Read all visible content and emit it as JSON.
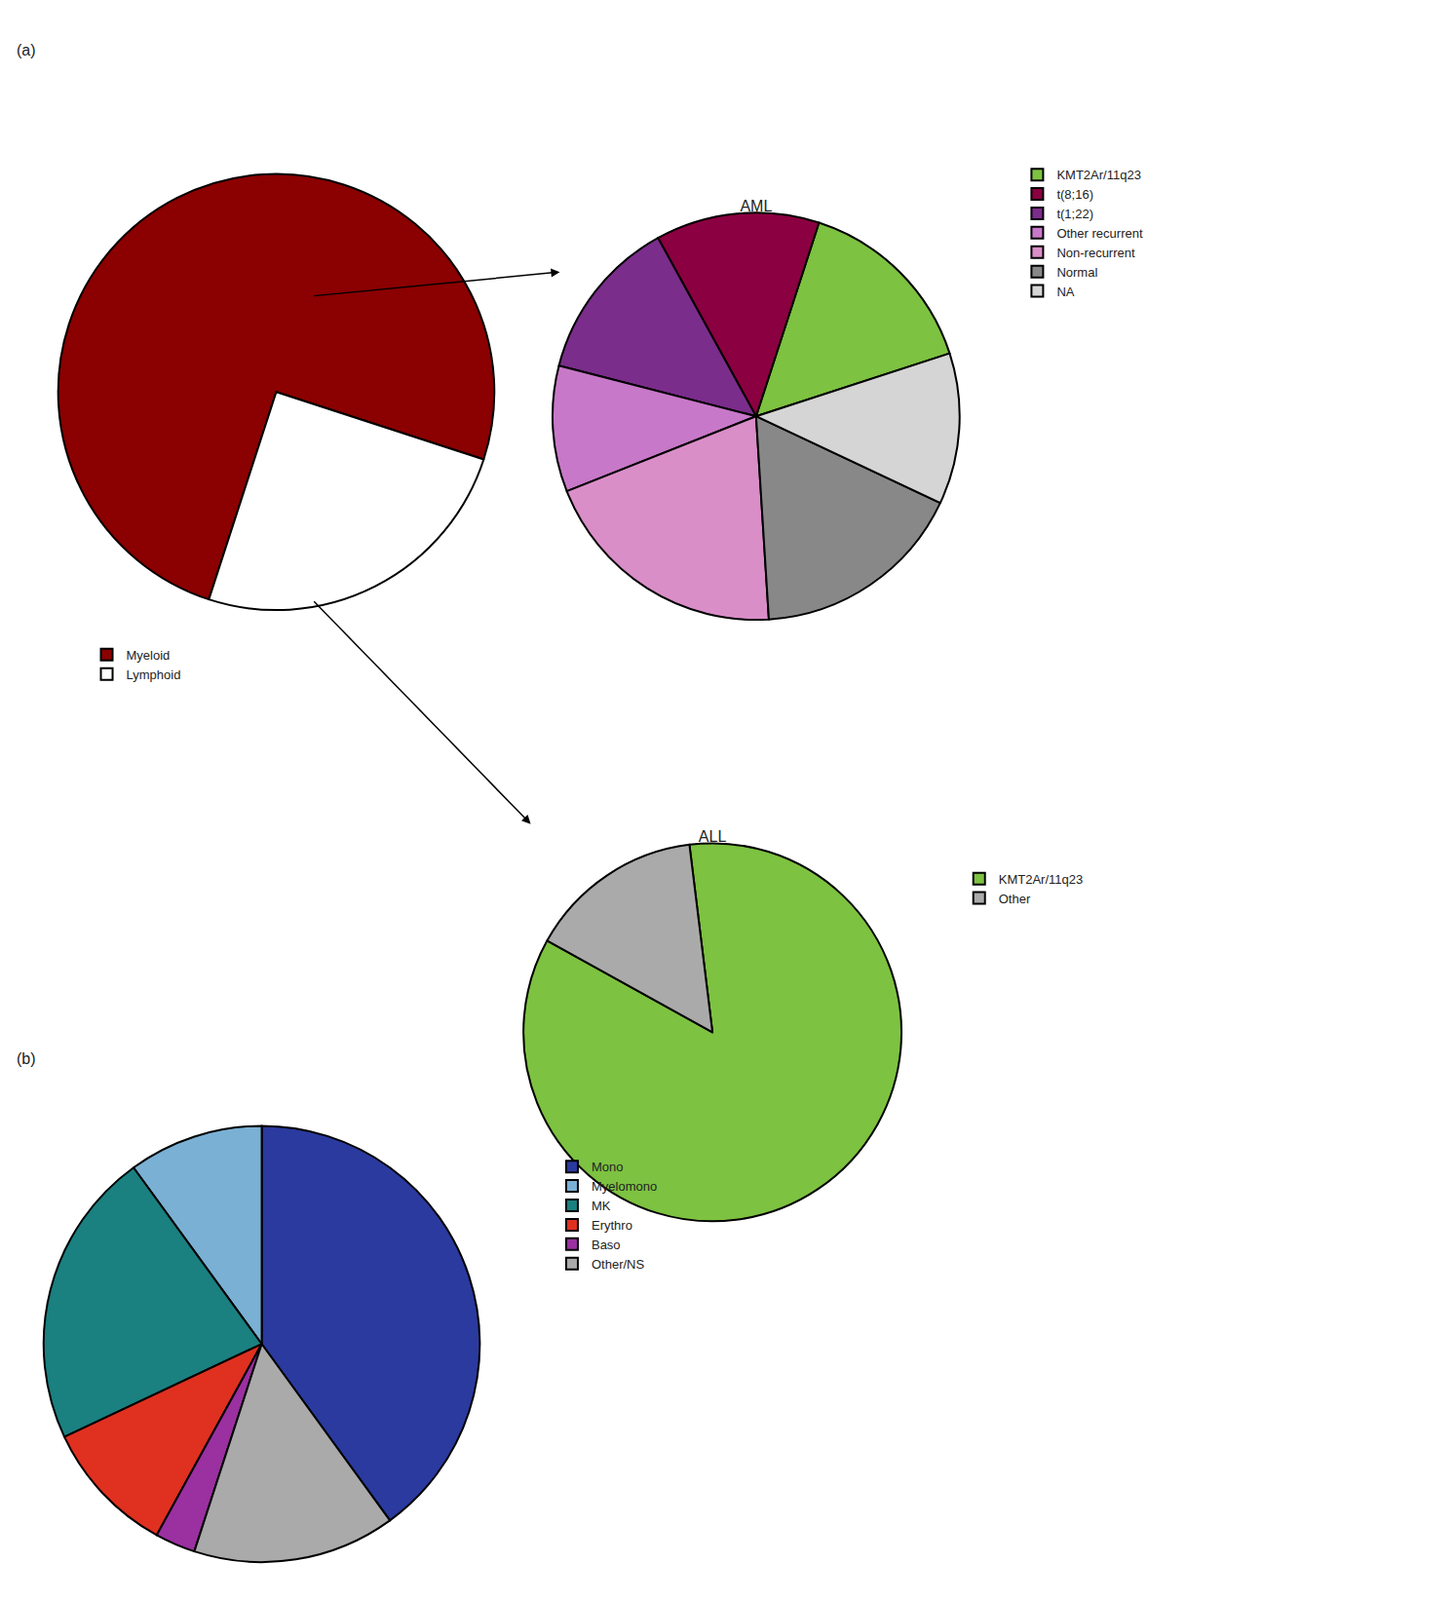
{
  "chart_data": [
    {
      "type": "pie",
      "annotations": [
        "(a)"
      ],
      "categories": [
        "Myeloid",
        "Lymphoid"
      ],
      "values": [
        75,
        25
      ],
      "colors": [
        "#8B0000",
        "#FFFFFF"
      ]
    },
    {
      "type": "pie",
      "title": "AML",
      "categories": [
        "KMT2Ar/11q23",
        "t(8;16)",
        "t(1;22)",
        "Other recurrent",
        "Non-recurrent",
        "Normal",
        "NA"
      ],
      "values": [
        15,
        13,
        13,
        10,
        20,
        17,
        12
      ],
      "colors": [
        "#7DC241",
        "#8B0040",
        "#7B2D8B",
        "#C878C8",
        "#DA8EC8",
        "#888888",
        "#D5D5D5"
      ]
    },
    {
      "type": "pie",
      "title": "ALL",
      "categories": [
        "KMT2Ar/11q23",
        "Other"
      ],
      "values": [
        85,
        15
      ],
      "colors": [
        "#7DC241",
        "#AAAAAA"
      ]
    },
    {
      "type": "pie",
      "annotations": [
        "(b)"
      ],
      "categories": [
        "Mono",
        "Myelomono",
        "MK",
        "Erythro",
        "Baso",
        "Other/NS"
      ],
      "values": [
        40,
        10,
        22,
        10,
        3,
        15
      ],
      "colors": [
        "#2B3A9E",
        "#7AB0D4",
        "#1B8080",
        "#E03020",
        "#9B30A0",
        "#AAAAAA"
      ]
    }
  ]
}
